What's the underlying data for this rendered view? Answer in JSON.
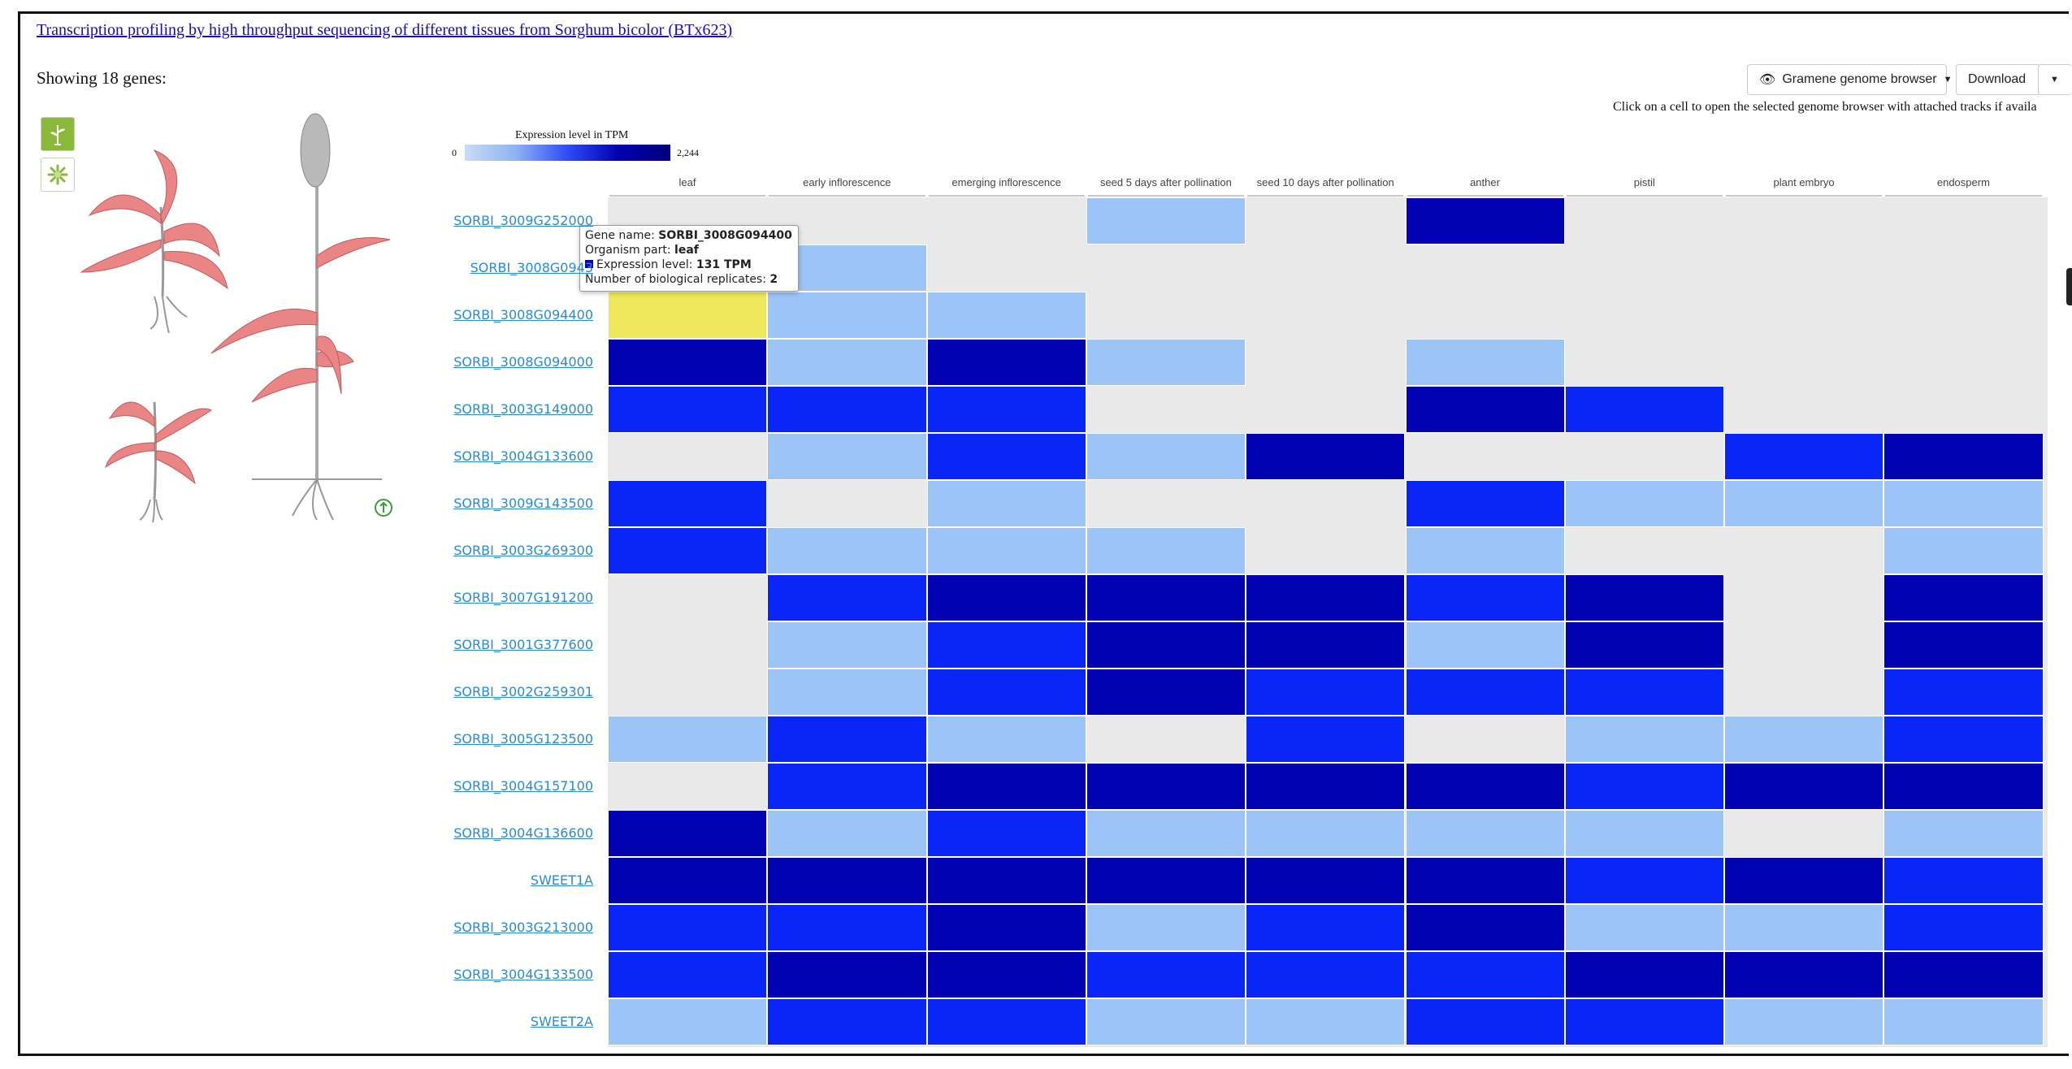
{
  "experiment": {
    "title": "Transcription profiling by high throughput sequencing of different tissues from Sorghum bicolor (BTx623)",
    "showing": "Showing 18 genes:"
  },
  "toolbar": {
    "browser_label": "Gramene genome browser",
    "download_label": "Download",
    "hint": "Click on a cell to open the selected genome browser with attached tracks if availa"
  },
  "legend": {
    "title": "Expression level in TPM",
    "min": "0",
    "max": "2,244"
  },
  "tooltip": {
    "gene_label": "Gene name:",
    "gene_value": "SORBI_3008G094400",
    "organism_label": "Organism part:",
    "organism_value": "leaf",
    "expression_label": "Expression level:",
    "expression_value": "131 TPM",
    "replicates_label": "Number of biological replicates:",
    "replicates_value": "2"
  },
  "colors": {
    "none": "#e9e9e9",
    "low": "#9cc4f6",
    "mid": "#0a26f7",
    "high": "#0202b2",
    "selected": "#f0e85c",
    "link": "#2a8ad8"
  },
  "columns": [
    "leaf",
    "early inflorescence",
    "emerging inflorescence",
    "seed 5 days after pollination",
    "seed 10 days after pollination",
    "anther",
    "pistil",
    "plant embryo",
    "endosperm"
  ],
  "genes": [
    "SORBI_3009G252000",
    "SORBI_3008G094300",
    "SORBI_3008G094400",
    "SORBI_3008G094000",
    "SORBI_3003G149000",
    "SORBI_3004G133600",
    "SORBI_3009G143500",
    "SORBI_3003G269300",
    "SORBI_3007G191200",
    "SORBI_3001G377600",
    "SORBI_3002G259301",
    "SORBI_3005G123500",
    "SORBI_3004G157100",
    "SORBI_3004G136600",
    "SWEET1A",
    "SORBI_3003G213000",
    "SORBI_3004G133500",
    "SWEET2A"
  ],
  "gene_labels_display": [
    "SORBI_3009G252000",
    "SORBI_3008G0943",
    "SORBI_3008G094400",
    "SORBI_3008G094000",
    "SORBI_3003G149000",
    "SORBI_3004G133600",
    "SORBI_3009G143500",
    "SORBI_3003G269300",
    "SORBI_3007G191200",
    "SORBI_3001G377600",
    "SORBI_3002G259301",
    "SORBI_3005G123500",
    "SORBI_3004G157100",
    "SORBI_3004G136600",
    "SWEET1A",
    "SORBI_3003G213000",
    "SORBI_3004G133500",
    "SWEET2A"
  ],
  "expression_levels": [
    [
      0,
      0,
      0,
      1,
      0,
      3,
      0,
      0,
      0
    ],
    [
      0,
      1,
      0,
      0,
      0,
      0,
      0,
      0,
      0
    ],
    [
      9,
      1,
      1,
      0,
      0,
      0,
      0,
      0,
      0
    ],
    [
      3,
      1,
      3,
      1,
      0,
      1,
      0,
      0,
      0
    ],
    [
      2,
      2,
      2,
      0,
      0,
      3,
      2,
      0,
      0
    ],
    [
      0,
      1,
      2,
      1,
      3,
      0,
      0,
      2,
      3
    ],
    [
      2,
      0,
      1,
      0,
      0,
      2,
      1,
      1,
      1
    ],
    [
      2,
      1,
      1,
      1,
      0,
      1,
      0,
      0,
      1
    ],
    [
      0,
      2,
      3,
      3,
      3,
      2,
      3,
      0,
      3
    ],
    [
      0,
      1,
      2,
      3,
      3,
      1,
      3,
      0,
      3
    ],
    [
      0,
      1,
      2,
      3,
      2,
      2,
      2,
      0,
      2
    ],
    [
      1,
      2,
      1,
      0,
      2,
      0,
      1,
      1,
      2
    ],
    [
      0,
      2,
      3,
      3,
      3,
      3,
      2,
      3,
      3
    ],
    [
      3,
      1,
      2,
      1,
      1,
      1,
      1,
      0,
      1
    ],
    [
      3,
      3,
      3,
      3,
      3,
      3,
      2,
      3,
      2
    ],
    [
      2,
      2,
      3,
      1,
      2,
      3,
      1,
      1,
      2
    ],
    [
      2,
      3,
      3,
      2,
      2,
      2,
      3,
      3,
      3
    ],
    [
      1,
      2,
      2,
      1,
      1,
      2,
      2,
      1,
      1
    ]
  ]
}
